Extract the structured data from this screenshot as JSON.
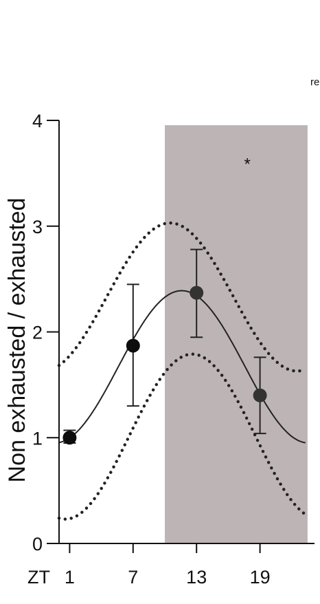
{
  "corner_text": "re",
  "chart_data": {
    "type": "scatter",
    "title": "",
    "xlabel": "ZT",
    "ylabel": "Non exhausted / exhausted",
    "x_ticks": [
      1,
      7,
      13,
      19
    ],
    "y_ticks": [
      0,
      1,
      2,
      3,
      4
    ],
    "xlim": [
      0,
      23.5
    ],
    "ylim": [
      0,
      4
    ],
    "dark_phase_shading": {
      "x_start": 10,
      "x_end": 23.5,
      "color": "#bdb5b5"
    },
    "annotations": [
      {
        "text": "*",
        "x": 17.8,
        "y": 3.6
      }
    ],
    "series": [
      {
        "type": "points_with_error",
        "x": [
          1,
          7,
          13,
          19
        ],
        "y": [
          1.0,
          1.87,
          2.37,
          1.4
        ],
        "err_low": [
          0.95,
          1.3,
          1.95,
          1.04
        ],
        "err_high": [
          1.07,
          2.45,
          2.78,
          1.76
        ]
      },
      {
        "type": "cosinor_fit",
        "style": "solid",
        "mesor": 1.67,
        "amplitude": 0.72,
        "acrophase": 11.6,
        "period": 24
      },
      {
        "type": "cosinor_fit",
        "style": "dotted",
        "mesor": 2.33,
        "amplitude": 0.7,
        "acrophase": 10.5,
        "period": 24
      },
      {
        "type": "cosinor_fit",
        "style": "dotted",
        "mesor": 1.01,
        "amplitude": 0.78,
        "acrophase": 12.6,
        "period": 24
      }
    ],
    "colors": {
      "shading": "#bdb5b5",
      "points": "#111111",
      "lines": "#222222"
    }
  }
}
